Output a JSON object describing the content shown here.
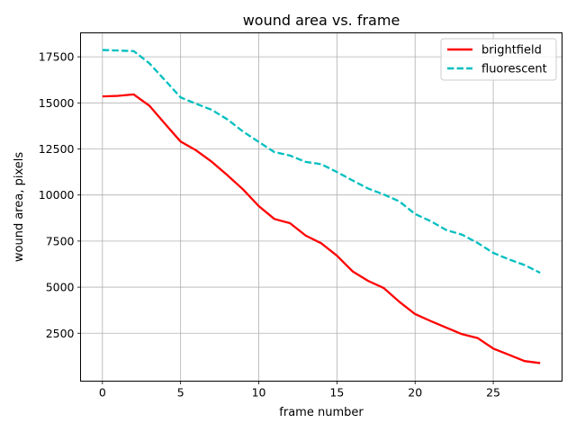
{
  "chart_data": {
    "type": "line",
    "title": "wound area vs. frame",
    "xlabel": "frame number",
    "ylabel": "wound area, pixels",
    "xlim": [
      -1.4,
      29.4
    ],
    "ylim": [
      -100,
      18800
    ],
    "xticks": [
      0,
      5,
      10,
      15,
      20,
      25
    ],
    "yticks": [
      2500,
      5000,
      7500,
      10000,
      12500,
      15000,
      17500
    ],
    "grid": true,
    "legend_position": "top-right",
    "x": [
      0,
      1,
      2,
      3,
      4,
      5,
      6,
      7,
      8,
      9,
      10,
      11,
      12,
      13,
      14,
      15,
      16,
      17,
      18,
      19,
      20,
      21,
      22,
      23,
      24,
      25,
      26,
      27,
      28
    ],
    "series": [
      {
        "name": "brightfield",
        "color": "#ff0000",
        "style": "solid",
        "values": [
          15350,
          15380,
          15460,
          14850,
          13870,
          12900,
          12420,
          11800,
          11070,
          10300,
          9400,
          8700,
          8470,
          7800,
          7380,
          6710,
          5860,
          5340,
          4950,
          4200,
          3540,
          3160,
          2800,
          2450,
          2240,
          1670,
          1330,
          990,
          880
        ]
      },
      {
        "name": "fluorescent",
        "color": "#00bfbf",
        "style": "dashed",
        "values": [
          17870,
          17840,
          17810,
          17150,
          16230,
          15300,
          14950,
          14620,
          14100,
          13440,
          12880,
          12330,
          12140,
          11800,
          11670,
          11250,
          10790,
          10350,
          10030,
          9650,
          8970,
          8580,
          8100,
          7850,
          7400,
          6860,
          6510,
          6200,
          5780
        ]
      }
    ]
  }
}
